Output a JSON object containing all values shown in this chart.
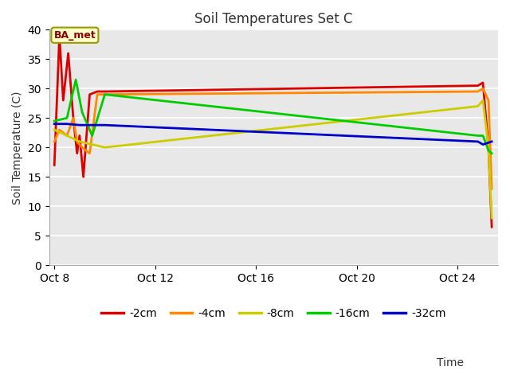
{
  "title": "Soil Temperatures Set C",
  "ylabel": "Soil Temperature (C)",
  "ylim": [
    0,
    40
  ],
  "annotation": "BA_met",
  "fig_bg_color": "#ffffff",
  "plot_bg_color": "#e8e8e8",
  "grid_color": "#ffffff",
  "xtick_positions": [
    0,
    4,
    8,
    12,
    16
  ],
  "xtick_labels": [
    "Oct 8",
    "Oct 12",
    "Oct 16",
    "Oct 20",
    "Oct 24"
  ],
  "ytick_positions": [
    0,
    5,
    10,
    15,
    20,
    25,
    30,
    35,
    40
  ],
  "xlim": [
    -0.2,
    17.6
  ],
  "legend_labels": [
    "-2cm",
    "-4cm",
    "-8cm",
    "-16cm",
    "-32cm"
  ],
  "legend_colors": [
    "#dd0000",
    "#ff8800",
    "#cccc00",
    "#00cc00",
    "#0000cc"
  ],
  "x_2cm": [
    0,
    0.2,
    0.35,
    0.55,
    0.75,
    0.9,
    1.0,
    1.15,
    1.4,
    1.7,
    2.0,
    16.8,
    17.0,
    17.22,
    17.35
  ],
  "y_2cm": [
    17,
    39,
    28,
    36,
    25,
    19,
    22,
    15,
    29,
    29.5,
    29.5,
    30.5,
    31,
    20,
    6.5
  ],
  "x_4cm": [
    0,
    0.2,
    0.5,
    0.75,
    0.9,
    1.1,
    1.4,
    1.7,
    2.0,
    16.8,
    17.0,
    17.22,
    17.35
  ],
  "y_4cm": [
    21,
    23,
    22,
    25,
    21,
    20,
    19,
    29,
    29,
    29.5,
    30,
    28,
    13
  ],
  "x_8cm": [
    0,
    0.5,
    1.0,
    2.0,
    16.8,
    17.0,
    17.22,
    17.35
  ],
  "y_8cm": [
    23,
    22,
    21,
    20,
    27,
    28,
    20,
    8
  ],
  "x_16cm": [
    0,
    0.5,
    0.85,
    1.1,
    1.5,
    2.0,
    16.8,
    17.0,
    17.22,
    17.35
  ],
  "y_16cm": [
    24.5,
    25,
    31.5,
    26,
    22,
    29,
    22,
    22,
    19.5,
    19
  ],
  "x_32cm": [
    0,
    0.5,
    1.0,
    2.0,
    16.8,
    17.0,
    17.35
  ],
  "y_32cm": [
    24,
    24,
    23.8,
    23.8,
    21,
    20.5,
    21
  ]
}
